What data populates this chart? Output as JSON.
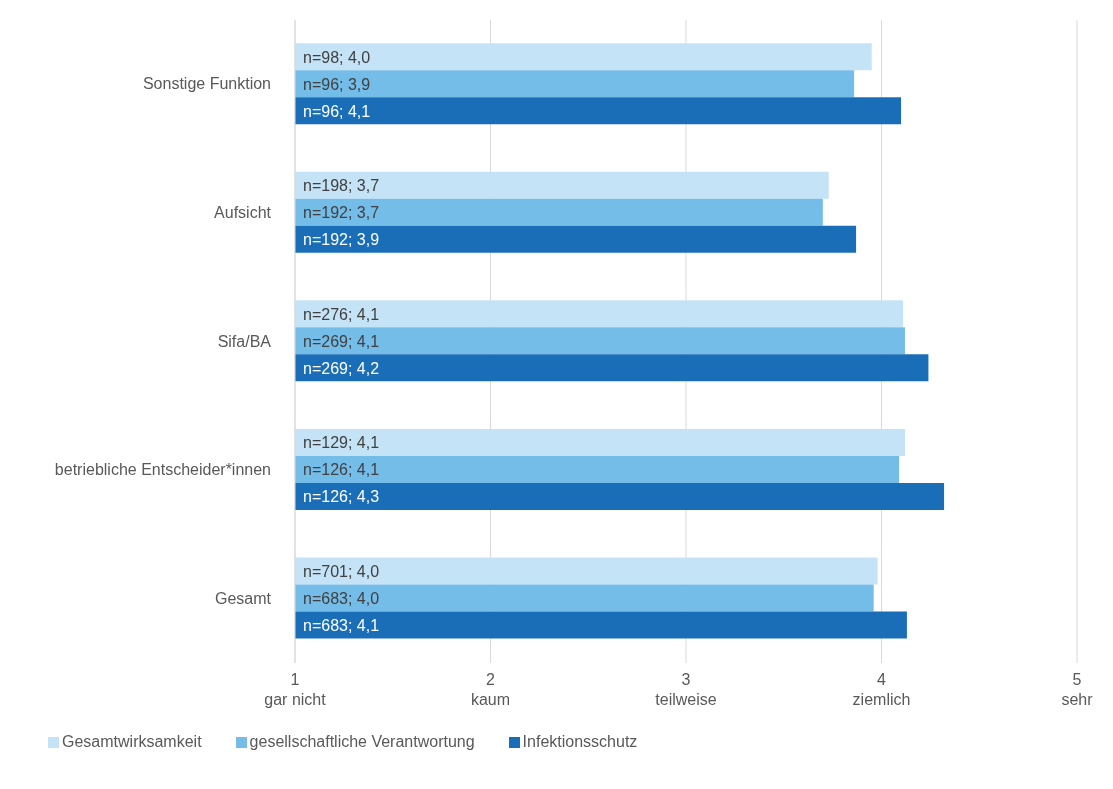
{
  "chart_data": {
    "type": "bar",
    "orientation": "horizontal",
    "categories": [
      "Sonstige Funktion",
      "Aufsicht",
      "Sifa/BA",
      "betriebliche Entscheider*innen",
      "Gesamt"
    ],
    "series": [
      {
        "name": "Gesamtwirksamkeit",
        "color": "#c5e3f6",
        "values": [
          3.95,
          3.73,
          4.11,
          4.12,
          3.98
        ],
        "value_labels": [
          "n=98; 4,0",
          "n=198; 3,7",
          "n=276; 4,1",
          "n=129; 4,1",
          "n=701; 4,0"
        ]
      },
      {
        "name": "gesellschaftliche Verantwortung",
        "color": "#74bde9",
        "values": [
          3.86,
          3.7,
          4.12,
          4.09,
          3.96
        ],
        "value_labels": [
          "n=96; 3,9",
          "n=192; 3,7",
          "n=269; 4,1",
          "n=126; 4,1",
          "n=683; 4,0"
        ]
      },
      {
        "name": "Infektionsschutz",
        "color": "#1a6eb8",
        "values": [
          4.1,
          3.87,
          4.24,
          4.32,
          4.13
        ],
        "value_labels": [
          "n=96; 4,1",
          "n=192; 3,9",
          "n=269; 4,2",
          "n=126; 4,3",
          "n=683; 4,1"
        ]
      }
    ],
    "xlim": [
      1,
      5
    ],
    "xticks": [
      {
        "value": 1,
        "label": "1\ngar nicht"
      },
      {
        "value": 2,
        "label": "2\nkaum"
      },
      {
        "value": 3,
        "label": "3\nteilweise"
      },
      {
        "value": 4,
        "label": "4\nziemlich"
      },
      {
        "value": 5,
        "label": "5\nsehr"
      }
    ],
    "grid": "x",
    "legend": "bottom left"
  }
}
